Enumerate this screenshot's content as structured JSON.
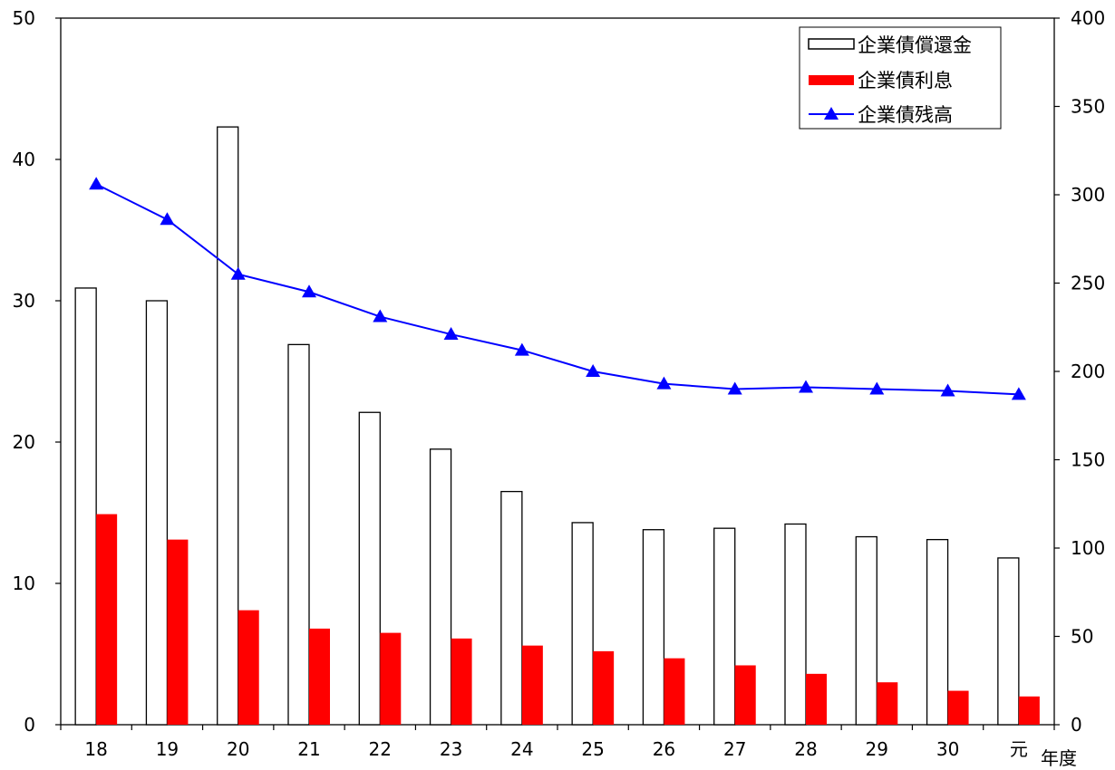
{
  "chart_data": {
    "type": "bar",
    "categories": [
      "18",
      "19",
      "20",
      "21",
      "22",
      "23",
      "24",
      "25",
      "26",
      "27",
      "28",
      "29",
      "30",
      "元"
    ],
    "xlabel": "年度",
    "y_left": {
      "range": [
        0,
        50
      ],
      "ticks": [
        0,
        10,
        20,
        30,
        40,
        50
      ]
    },
    "y_right": {
      "range": [
        0,
        400
      ],
      "ticks": [
        0,
        50,
        100,
        150,
        200,
        250,
        300,
        350,
        400
      ]
    },
    "grid": false,
    "legend_position": "top-right",
    "series": [
      {
        "name": "企業債償還金",
        "type": "bar",
        "axis": "left",
        "color": "#ffffff",
        "stroke": "#000000",
        "values": [
          30.9,
          30.0,
          42.3,
          26.9,
          22.1,
          19.5,
          16.5,
          14.3,
          13.8,
          13.9,
          14.2,
          13.3,
          13.1,
          11.8
        ]
      },
      {
        "name": "企業債利息",
        "type": "bar",
        "axis": "left",
        "color": "#ff0000",
        "values": [
          14.9,
          13.1,
          8.1,
          6.8,
          6.5,
          6.1,
          5.6,
          5.2,
          4.7,
          4.2,
          3.6,
          3.0,
          2.4,
          2.0
        ]
      },
      {
        "name": "企業債残高",
        "type": "line",
        "axis": "right",
        "color": "#0000ff",
        "marker": "triangle",
        "values": [
          306,
          286,
          255,
          245,
          231,
          221,
          212,
          200,
          193,
          190,
          191,
          190,
          189,
          187
        ]
      }
    ]
  }
}
